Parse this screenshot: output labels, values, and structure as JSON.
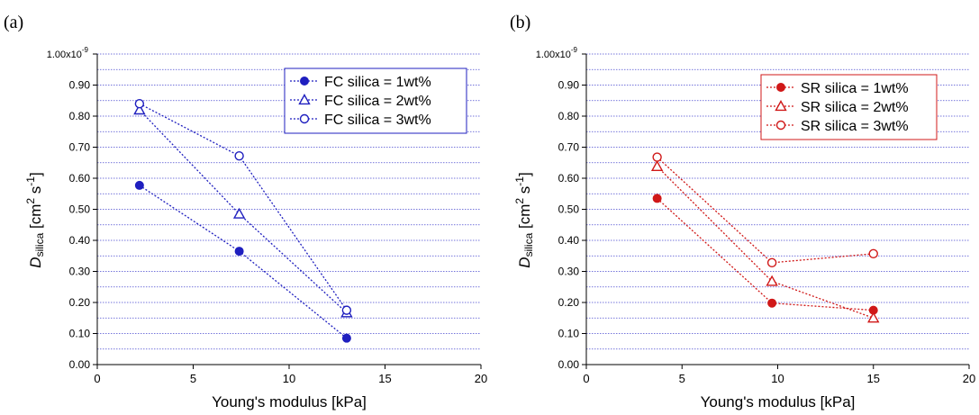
{
  "chart_data": [
    {
      "panel_label": "(a)",
      "type": "line",
      "xlabel": "Young's modulus [kPa]",
      "ylabel": {
        "symbol": "D",
        "subscript": "silica",
        "units": " [cm",
        "exp1": "2",
        "mid": " s",
        "exp2": "-1",
        "close": "]"
      },
      "xlim": [
        0,
        20
      ],
      "ylim": [
        0,
        1.0
      ],
      "x_ticks": [
        "0",
        "5",
        "10",
        "15",
        "20"
      ],
      "x_tick_values": [
        0,
        5,
        10,
        15,
        20
      ],
      "y_ticks": [
        "0.00",
        "0.10",
        "0.20",
        "0.30",
        "0.40",
        "0.50",
        "0.60",
        "0.70",
        "0.80",
        "0.90"
      ],
      "y_tick_values": [
        0.0,
        0.1,
        0.2,
        0.3,
        0.4,
        0.5,
        0.6,
        0.7,
        0.8,
        0.9
      ],
      "y_top_tick": {
        "mantissa": "1.00x10",
        "exponent": "-9"
      },
      "grid": "horizontal dotted every 0.05",
      "legend_position": "top-right",
      "color": "#1f1fbf",
      "series": [
        {
          "name": "FC silica = 1wt%",
          "marker": "filled-circle",
          "x": [
            2.2,
            7.4,
            13.0
          ],
          "y": [
            0.577,
            0.365,
            0.085
          ]
        },
        {
          "name": "FC silica = 2wt%",
          "marker": "open-triangle",
          "x": [
            2.2,
            7.4,
            13.0
          ],
          "y": [
            0.82,
            0.485,
            0.167
          ]
        },
        {
          "name": "FC silica = 3wt%",
          "marker": "open-circle",
          "x": [
            2.2,
            7.4,
            13.0
          ],
          "y": [
            0.84,
            0.672,
            0.175
          ]
        }
      ]
    },
    {
      "panel_label": "(b)",
      "type": "line",
      "xlabel": "Young's modulus [kPa]",
      "ylabel": {
        "symbol": "D",
        "subscript": "silica",
        "units": " [cm",
        "exp1": "2",
        "mid": " s",
        "exp2": "-1",
        "close": "]"
      },
      "xlim": [
        0,
        20
      ],
      "ylim": [
        0,
        1.0
      ],
      "x_ticks": [
        "0",
        "5",
        "10",
        "15",
        "20"
      ],
      "x_tick_values": [
        0,
        5,
        10,
        15,
        20
      ],
      "y_ticks": [
        "0.00",
        "0.10",
        "0.20",
        "0.30",
        "0.40",
        "0.50",
        "0.60",
        "0.70",
        "0.80",
        "0.90"
      ],
      "y_tick_values": [
        0.0,
        0.1,
        0.2,
        0.3,
        0.4,
        0.5,
        0.6,
        0.7,
        0.8,
        0.9
      ],
      "y_top_tick": {
        "mantissa": "1.00x10",
        "exponent": "-9"
      },
      "grid": "horizontal dotted every 0.05",
      "legend_position": "top-right",
      "color": "#d01818",
      "series": [
        {
          "name": "SR silica = 1wt%",
          "marker": "filled-circle",
          "x": [
            3.7,
            9.7,
            15.0
          ],
          "y": [
            0.535,
            0.198,
            0.175
          ]
        },
        {
          "name": "SR silica = 2wt%",
          "marker": "open-triangle",
          "x": [
            3.7,
            9.7,
            15.0
          ],
          "y": [
            0.638,
            0.268,
            0.15
          ]
        },
        {
          "name": "SR silica = 3wt%",
          "marker": "open-circle",
          "x": [
            3.7,
            9.7,
            15.0
          ],
          "y": [
            0.668,
            0.328,
            0.357
          ]
        }
      ]
    }
  ]
}
